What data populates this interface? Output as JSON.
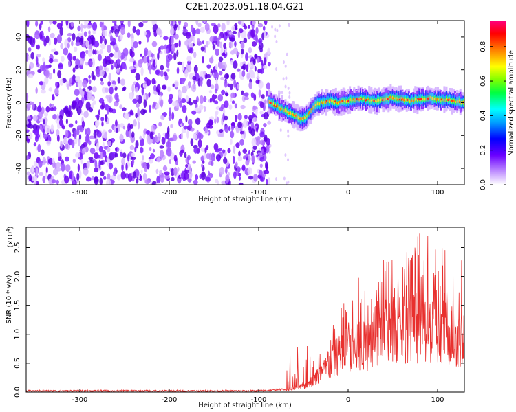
{
  "figure": {
    "title": "C2E1.2023.051.18.04.G21"
  },
  "chart_data": [
    {
      "type": "heatmap",
      "xlabel": "Height of straight line (km)",
      "ylabel": "Frequency (Hz)",
      "xlim": [
        -360,
        130
      ],
      "ylim": [
        -50,
        50
      ],
      "xticks": [
        -300,
        -200,
        -100,
        0,
        100
      ],
      "xtick_labels": [
        "-300",
        "-200",
        "-100",
        "0",
        "100"
      ],
      "yticks": [
        -40,
        -20,
        0,
        20,
        40
      ],
      "ytick_labels": [
        "-40",
        "-20",
        "0",
        "20",
        "40"
      ],
      "noise_region_x": [
        -360,
        -88
      ],
      "signal_track": {
        "x": [
          -88,
          -80,
          -70,
          -60,
          -50,
          -45,
          -40,
          -35,
          -30,
          -20,
          -10,
          0,
          10,
          20,
          30,
          40,
          50,
          60,
          70,
          80,
          90,
          100,
          110,
          120,
          130
        ],
        "y": [
          0,
          -2,
          -5,
          -8,
          -10,
          -8,
          -4,
          -1,
          0,
          1,
          0,
          1,
          2,
          2,
          1,
          2,
          3,
          2,
          1,
          2,
          3,
          2,
          2,
          1,
          0
        ]
      },
      "colorbar": {
        "label": "Normalized spectral amplitude",
        "range": [
          0,
          0.95
        ],
        "ticks": [
          0.0,
          0.2,
          0.4,
          0.6,
          0.8
        ],
        "tick_labels": [
          "0.0",
          "0.2",
          "0.4",
          "0.6",
          "0.8"
        ]
      },
      "grid": false
    },
    {
      "type": "line",
      "xlabel": "Height of straight line (km)",
      "ylabel": "SNR (10 * v/v)",
      "scale_label": "(x10",
      "scale_exponent": "4",
      "scale_close": ")",
      "xlim": [
        -360,
        130
      ],
      "ylim": [
        0,
        2.85
      ],
      "xticks": [
        -300,
        -200,
        -100,
        0,
        100
      ],
      "xtick_labels": [
        "-300",
        "-200",
        "-100",
        "0",
        "100"
      ],
      "yticks": [
        0.0,
        0.5,
        1.0,
        1.5,
        2.0,
        2.5
      ],
      "ytick_labels": [
        "0.0",
        "0.5",
        "1.0",
        "1.5",
        "2.0",
        "2.5"
      ],
      "series": [
        {
          "x": [
            -360,
            -300,
            -200,
            -100,
            -70,
            -50,
            -40,
            -30,
            -20,
            -10,
            0,
            10,
            20,
            30,
            40,
            50,
            60,
            70,
            80,
            90,
            100,
            110,
            120,
            130
          ],
          "y": [
            0.02,
            0.02,
            0.02,
            0.02,
            0.05,
            0.12,
            0.25,
            0.4,
            0.6,
            0.85,
            0.9,
            0.95,
            1.0,
            1.3,
            1.3,
            1.35,
            1.4,
            1.45,
            1.4,
            1.35,
            1.3,
            1.3,
            1.2,
            1.1
          ],
          "peak_x": [
            -30,
            -20,
            -10,
            5,
            20,
            30,
            45,
            60,
            75,
            95,
            110,
            125
          ],
          "peak_y": [
            0.8,
            1.2,
            1.5,
            2.0,
            2.3,
            2.5,
            2.5,
            2.6,
            2.85,
            2.65,
            2.6,
            2.3
          ],
          "color": "#e8302e"
        }
      ],
      "grid": false
    }
  ]
}
